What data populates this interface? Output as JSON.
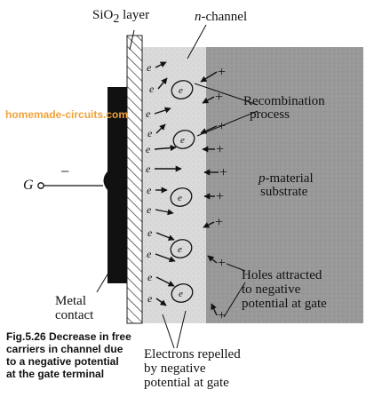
{
  "labels": {
    "oxide": [
      "SiO",
      "2",
      " layer"
    ],
    "channel": [
      "n",
      "-channel"
    ],
    "recombination": [
      "Recombination",
      "process"
    ],
    "substrate": [
      "p",
      "-material",
      "substrate"
    ],
    "holes": [
      "Holes attracted",
      "to negative",
      "potential at gate"
    ],
    "electrons": [
      "Electrons repelled",
      "by negative",
      "potential at gate"
    ],
    "metal": [
      "Metal",
      "contact"
    ],
    "gate": "G",
    "gate_sign": "−",
    "electron_symbol": "e",
    "plus_sign": "+"
  },
  "watermark": "homemade-circuits.com",
  "caption": [
    "Fig.5.26 Decrease in free",
    "carriers in channel due",
    "to a negative potential",
    "at the gate terminal"
  ],
  "colors": {
    "metal": "#111111",
    "channel": "#d9d9d9",
    "substrate": "#9a9a9a",
    "watermark": "#f0a23a"
  }
}
